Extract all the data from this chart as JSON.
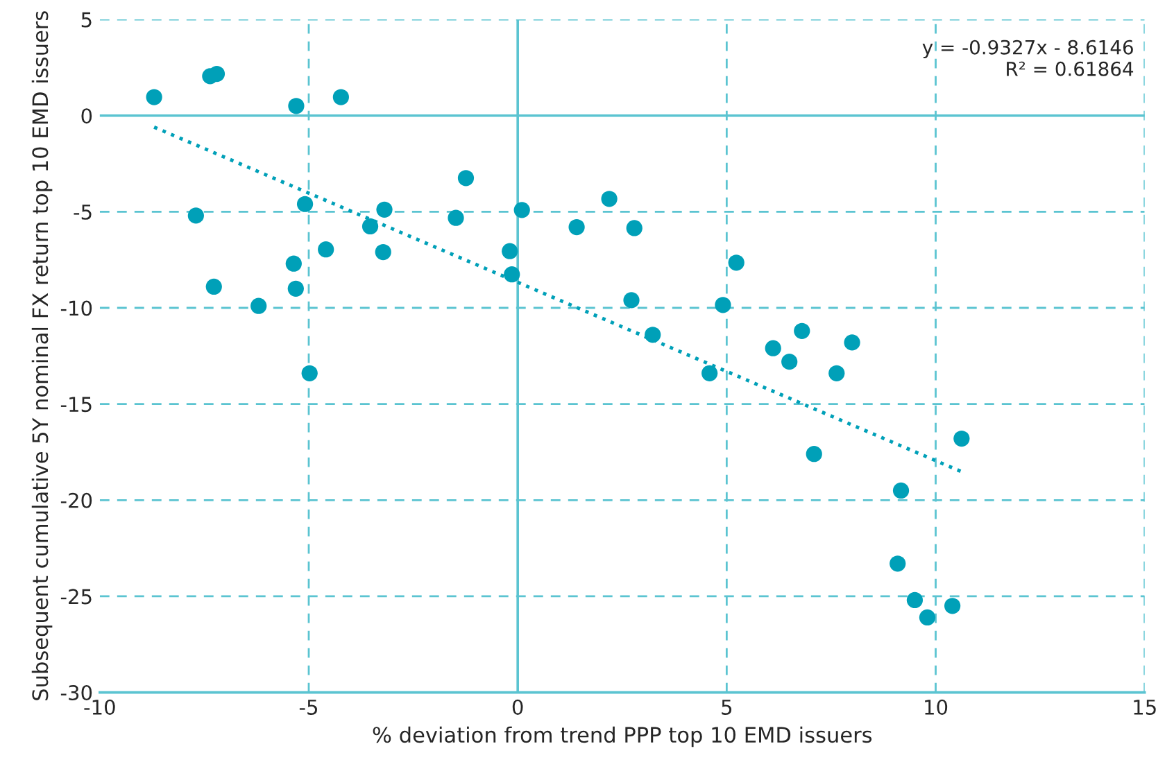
{
  "chart_data": {
    "type": "scatter",
    "xlabel": "% deviation from trend PPP top 10 EMD issuers",
    "ylabel": "Subsequent cumulative 5Y nominal FX return top 10 EMD issuers",
    "series": [
      {
        "color": "#00a0b8",
        "marker": "circle",
        "x": [
          -8.7,
          -7.36,
          -7.2,
          -5.3,
          -4.23,
          -7.7,
          -5.09,
          -7.27,
          -5.36,
          -5.31,
          -6.2,
          -4.98,
          -4.59,
          -3.19,
          -3.53,
          -3.22,
          -1.24,
          -1.48,
          -0.19,
          -0.14,
          0.1,
          1.41,
          2.19,
          2.79,
          2.72,
          3.23,
          4.59,
          4.91,
          5.23,
          6.11,
          6.5,
          6.8,
          8.0,
          7.63,
          7.09,
          10.62,
          9.17,
          9.09,
          9.5,
          9.8,
          10.4
        ],
        "values": [
          0.96,
          2.05,
          2.17,
          0.5,
          0.96,
          -5.2,
          -4.6,
          -8.9,
          -7.7,
          -9.0,
          -9.9,
          -13.4,
          -6.96,
          -4.89,
          -5.76,
          -7.1,
          -3.25,
          -5.32,
          -7.05,
          -8.26,
          -4.91,
          -5.8,
          -4.33,
          -5.85,
          -9.6,
          -11.4,
          -13.4,
          -9.85,
          -7.65,
          -12.1,
          -12.8,
          -11.2,
          -11.8,
          -13.4,
          -17.6,
          -16.8,
          -19.5,
          -23.3,
          -25.2,
          -26.1,
          -25.5
        ]
      },
      {
        "type": "line",
        "color": "#00a0b8",
        "line_style": "dotted",
        "x": [
          -8.7,
          10.62
        ],
        "values": [
          -0.6,
          -18.52
        ]
      }
    ],
    "annotations": [
      "y = -0.9327x - 8.6146\nR² = 0.61864"
    ],
    "xlim": [
      -10,
      15
    ],
    "ylim": [
      -30,
      5
    ],
    "xticks": [
      -10,
      -5,
      0,
      5,
      10,
      15
    ],
    "yticks": [
      -30,
      -25,
      -20,
      -15,
      -10,
      -5,
      0,
      5
    ],
    "grid": true,
    "legend": false
  }
}
